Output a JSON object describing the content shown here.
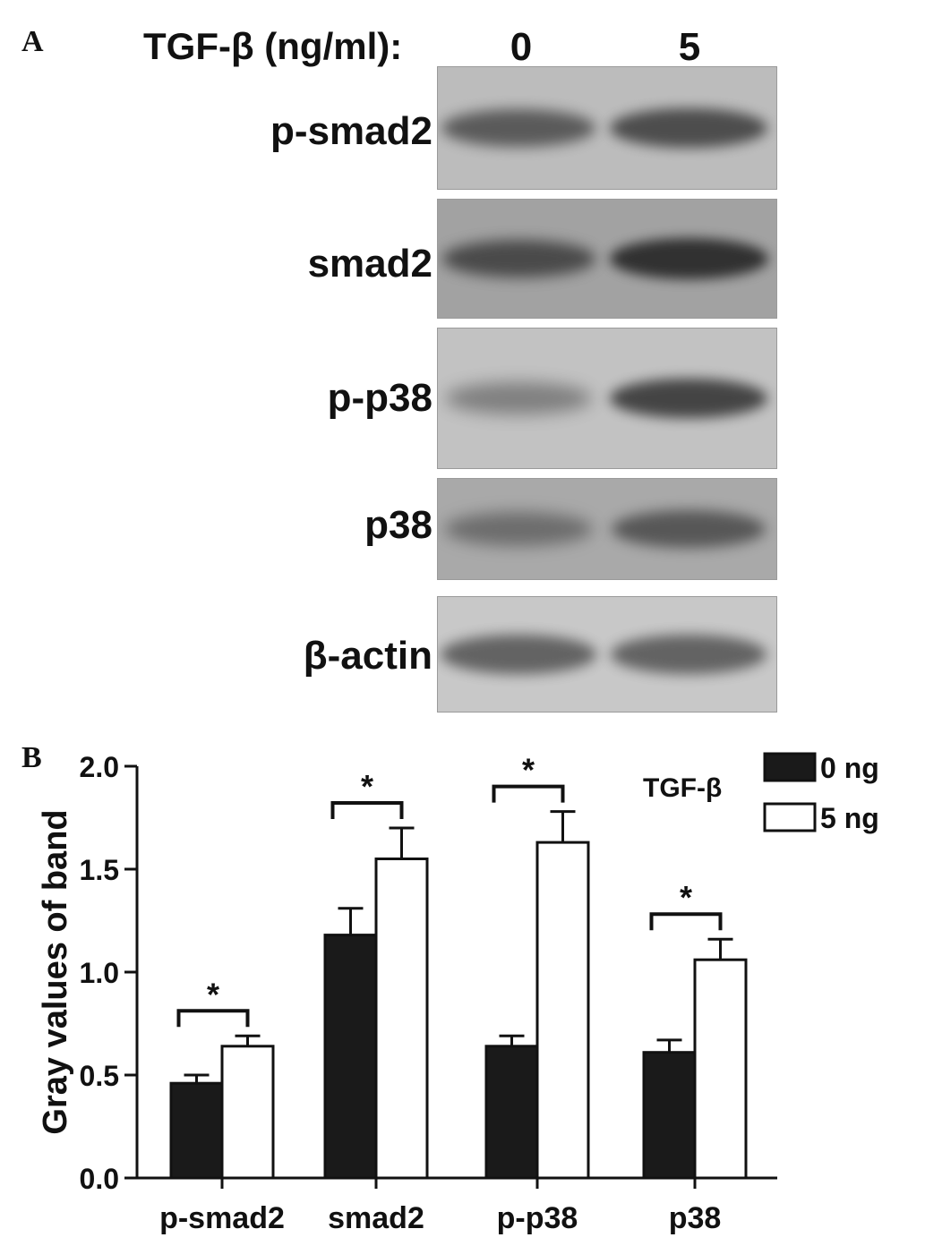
{
  "panel_a": {
    "letter": "A",
    "treatment_label": "TGF-β (ng/ml):",
    "lanes": [
      "0",
      "5"
    ],
    "blots": [
      {
        "label": "p-smad2",
        "bg": "#bcbcbc",
        "band_color": "#3a3a3a",
        "intensity": [
          0.75,
          0.85
        ]
      },
      {
        "label": "smad2",
        "bg": "#a2a2a2",
        "band_color": "#252525",
        "intensity": [
          0.7,
          0.9
        ]
      },
      {
        "label": "p-p38",
        "bg": "#c2c2c2",
        "band_color": "#2f2f2f",
        "intensity": [
          0.45,
          0.85
        ]
      },
      {
        "label": "p38",
        "bg": "#a9a9a9",
        "band_color": "#3c3c3c",
        "intensity": [
          0.55,
          0.75
        ]
      },
      {
        "label": "β-actin",
        "bg": "#c8c8c8",
        "band_color": "#4a4a4a",
        "intensity": [
          0.8,
          0.8
        ]
      }
    ]
  },
  "panel_b": {
    "letter": "B"
  },
  "chart_data": {
    "type": "bar",
    "title": "",
    "xlabel": "",
    "ylabel": "Gray values of band",
    "ylim": [
      0,
      2.0
    ],
    "yticks": [
      "0.0",
      "0.5",
      "1.0",
      "1.5",
      "2.0"
    ],
    "categories": [
      "p-smad2",
      "smad2",
      "p-p38",
      "p38"
    ],
    "legend_title": "TGF-β",
    "legend_position": "top-right",
    "series": [
      {
        "name": "0 ng",
        "color": "#1a1a1a",
        "values": [
          0.46,
          1.18,
          0.64,
          0.61
        ],
        "errors": [
          0.04,
          0.13,
          0.05,
          0.06
        ]
      },
      {
        "name": "5 ng",
        "color": "#ffffff",
        "values": [
          0.64,
          1.55,
          1.63,
          1.06
        ],
        "errors": [
          0.05,
          0.15,
          0.15,
          0.1
        ]
      }
    ],
    "significance_marker": "*",
    "significance": [
      true,
      true,
      true,
      true
    ]
  }
}
